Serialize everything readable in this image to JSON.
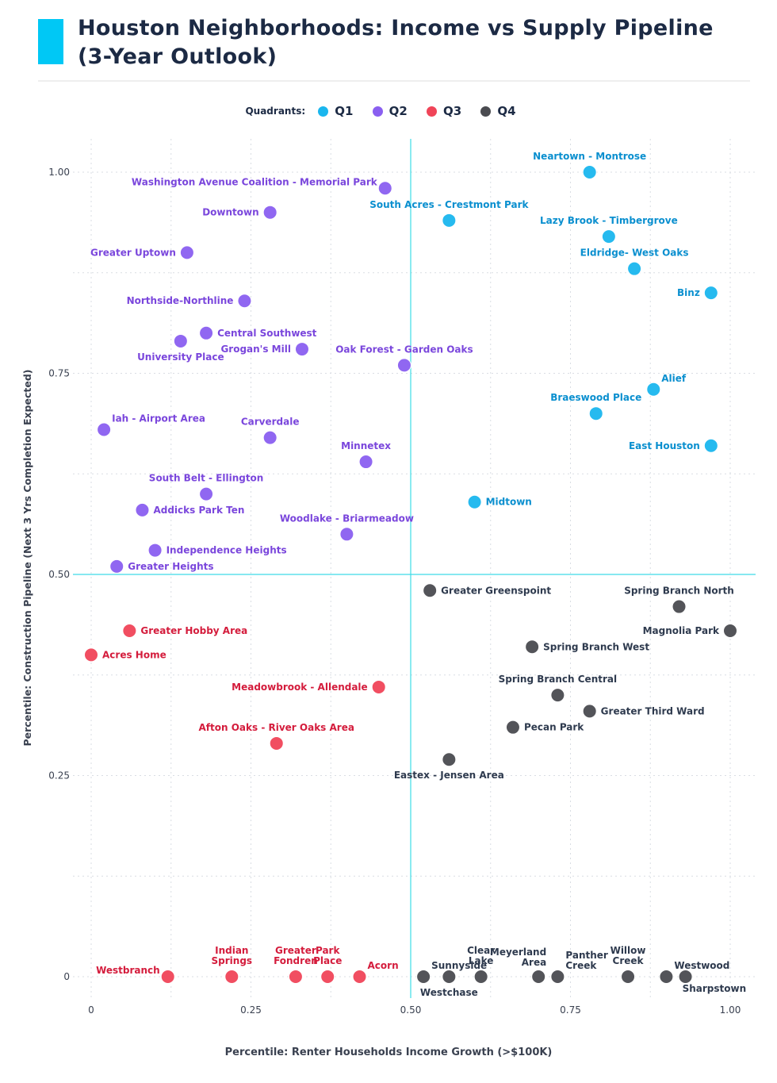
{
  "header": {
    "title_line1": "Houston Neighborhoods: Income vs Supply Pipeline",
    "title_line2": "(3-Year Outlook)",
    "accent_color": "#00c8f5"
  },
  "legend": {
    "title": "Quadrants:",
    "items": [
      {
        "label": "Q1",
        "color": "#1ab6ee"
      },
      {
        "label": "Q2",
        "color": "#8a5ff0"
      },
      {
        "label": "Q3",
        "color": "#f04458"
      },
      {
        "label": "Q4",
        "color": "#4a4b50"
      }
    ]
  },
  "colors": {
    "Q1_text": "#0a8fcf",
    "Q2_text": "#7a46dc",
    "Q3_text": "#d41c3c",
    "Q4_text": "#2e3a4e",
    "ref_line": "#3ddbe6",
    "grid": "#d9dde3"
  },
  "chart_data": {
    "type": "scatter",
    "title": "Houston Neighborhoods: Income vs Supply Pipeline (3-Year Outlook)",
    "xlabel": "Percentile: Renter Households Income Growth (>$100K)",
    "ylabel": "Percentile: Construction Pipeline (Next 3 Yrs Completion Expected)",
    "xlim": [
      -0.02,
      1.04
    ],
    "ylim": [
      -0.03,
      1.08
    ],
    "xticks": [
      0,
      0.25,
      0.5,
      0.75,
      1.0
    ],
    "xtick_labels": [
      "0",
      "0.25",
      "0.50",
      "0.75",
      "1.00"
    ],
    "yticks": [
      0,
      0.25,
      0.5,
      0.75,
      1.0
    ],
    "ytick_labels": [
      "0",
      "0.25",
      "0.50",
      "0.75",
      "1.00"
    ],
    "minor_grid": [
      0.125,
      0.375,
      0.625,
      0.875
    ],
    "reference_lines": {
      "x": 0.5,
      "y": 0.5
    },
    "legend_title": "Quadrants:",
    "series": [
      {
        "name": "Q1",
        "points": [
          {
            "label": "Neartown - Montrose",
            "x": 0.78,
            "y": 1.0,
            "pos": "top"
          },
          {
            "label": "South Acres - Crestmont Park",
            "x": 0.56,
            "y": 0.94,
            "pos": "top"
          },
          {
            "label": "Lazy Brook - Timbergrove",
            "x": 0.81,
            "y": 0.92,
            "pos": "top"
          },
          {
            "label": "Eldridge- West Oaks",
            "x": 0.85,
            "y": 0.88,
            "pos": "top"
          },
          {
            "label": "Binz",
            "x": 0.97,
            "y": 0.85,
            "pos": "left"
          },
          {
            "label": "Alief",
            "x": 0.88,
            "y": 0.73,
            "pos": "upright"
          },
          {
            "label": "Braeswood Place",
            "x": 0.79,
            "y": 0.7,
            "pos": "top"
          },
          {
            "label": "East Houston",
            "x": 0.97,
            "y": 0.66,
            "pos": "left"
          },
          {
            "label": "Midtown",
            "x": 0.6,
            "y": 0.59,
            "pos": "right"
          }
        ]
      },
      {
        "name": "Q2",
        "points": [
          {
            "label": "Washington Avenue Coalition - Memorial Park",
            "x": 0.46,
            "y": 0.98,
            "pos": "upleft"
          },
          {
            "label": "Downtown",
            "x": 0.28,
            "y": 0.95,
            "pos": "left"
          },
          {
            "label": "Greater Uptown",
            "x": 0.15,
            "y": 0.9,
            "pos": "left"
          },
          {
            "label": "Northside-Northline",
            "x": 0.24,
            "y": 0.84,
            "pos": "left"
          },
          {
            "label": "Central Southwest",
            "x": 0.18,
            "y": 0.8,
            "pos": "right"
          },
          {
            "label": "Grogan's Mill",
            "x": 0.33,
            "y": 0.78,
            "pos": "left"
          },
          {
            "label": "University Place",
            "x": 0.14,
            "y": 0.79,
            "pos": "below"
          },
          {
            "label": "Oak Forest - Garden Oaks",
            "x": 0.49,
            "y": 0.76,
            "pos": "top"
          },
          {
            "label": "Iah - Airport Area",
            "x": 0.02,
            "y": 0.68,
            "pos": "upright"
          },
          {
            "label": "Carverdale",
            "x": 0.28,
            "y": 0.67,
            "pos": "top"
          },
          {
            "label": "Minnetex",
            "x": 0.43,
            "y": 0.64,
            "pos": "top"
          },
          {
            "label": "South Belt - Ellington",
            "x": 0.18,
            "y": 0.6,
            "pos": "top"
          },
          {
            "label": "Addicks Park Ten",
            "x": 0.08,
            "y": 0.58,
            "pos": "right"
          },
          {
            "label": "Woodlake - Briarmeadow",
            "x": 0.4,
            "y": 0.55,
            "pos": "top"
          },
          {
            "label": "Independence Heights",
            "x": 0.1,
            "y": 0.53,
            "pos": "right"
          },
          {
            "label": "Greater Heights",
            "x": 0.04,
            "y": 0.51,
            "pos": "right"
          }
        ]
      },
      {
        "name": "Q3",
        "points": [
          {
            "label": "Greater Hobby Area",
            "x": 0.06,
            "y": 0.43,
            "pos": "right"
          },
          {
            "label": "Acres Home",
            "x": 0.0,
            "y": 0.4,
            "pos": "right"
          },
          {
            "label": "Meadowbrook - Allendale",
            "x": 0.45,
            "y": 0.36,
            "pos": "left"
          },
          {
            "label": "Afton Oaks - River Oaks Area",
            "x": 0.29,
            "y": 0.29,
            "pos": "top"
          },
          {
            "label": "Westbranch",
            "x": 0.12,
            "y": 0.0,
            "pos": "upleft"
          },
          {
            "label": "Indian Springs",
            "x": 0.22,
            "y": 0.0,
            "pos": "top",
            "lines": [
              "Indian",
              "Springs"
            ]
          },
          {
            "label": "Greater Fondren",
            "x": 0.32,
            "y": 0.0,
            "pos": "top",
            "lines": [
              "Greater",
              "Fondren"
            ]
          },
          {
            "label": "Park Place",
            "x": 0.37,
            "y": 0.0,
            "pos": "top",
            "lines": [
              "Park",
              "Place"
            ]
          },
          {
            "label": "Acorn",
            "x": 0.42,
            "y": 0.0,
            "pos": "upright"
          }
        ]
      },
      {
        "name": "Q4",
        "points": [
          {
            "label": "Greater Greenspoint",
            "x": 0.53,
            "y": 0.48,
            "pos": "right"
          },
          {
            "label": "Spring Branch North",
            "x": 0.92,
            "y": 0.46,
            "pos": "top"
          },
          {
            "label": "Magnolia Park",
            "x": 1.0,
            "y": 0.43,
            "pos": "left"
          },
          {
            "label": "Spring Branch West",
            "x": 0.69,
            "y": 0.41,
            "pos": "right"
          },
          {
            "label": "Spring Branch Central",
            "x": 0.73,
            "y": 0.35,
            "pos": "top"
          },
          {
            "label": "Greater Third Ward",
            "x": 0.78,
            "y": 0.33,
            "pos": "right"
          },
          {
            "label": "Pecan Park",
            "x": 0.66,
            "y": 0.31,
            "pos": "right"
          },
          {
            "label": "Eastex - Jensen Area",
            "x": 0.56,
            "y": 0.27,
            "pos": "below"
          },
          {
            "label": "Sunnyside",
            "x": 0.52,
            "y": 0.0,
            "pos": "upright"
          },
          {
            "label": "Westchase",
            "x": 0.56,
            "y": 0.0,
            "pos": "below"
          },
          {
            "label": "Clear Lake",
            "x": 0.61,
            "y": 0.0,
            "pos": "top",
            "lines": [
              "Clear",
              "Lake"
            ]
          },
          {
            "label": "Meyerland Area",
            "x": 0.7,
            "y": 0.0,
            "pos": "upleft",
            "lines": [
              "Meyerland",
              "Area"
            ]
          },
          {
            "label": "Panther Creek",
            "x": 0.73,
            "y": 0.0,
            "pos": "upright",
            "lines": [
              "Panther",
              "Creek"
            ]
          },
          {
            "label": "Willow Creek",
            "x": 0.84,
            "y": 0.0,
            "pos": "top",
            "lines": [
              "Willow",
              "Creek"
            ]
          },
          {
            "label": "Westwood",
            "x": 0.9,
            "y": 0.0,
            "pos": "upright"
          },
          {
            "label": "Sharpstown",
            "x": 0.93,
            "y": 0.0,
            "pos": "belowright"
          }
        ]
      }
    ]
  }
}
